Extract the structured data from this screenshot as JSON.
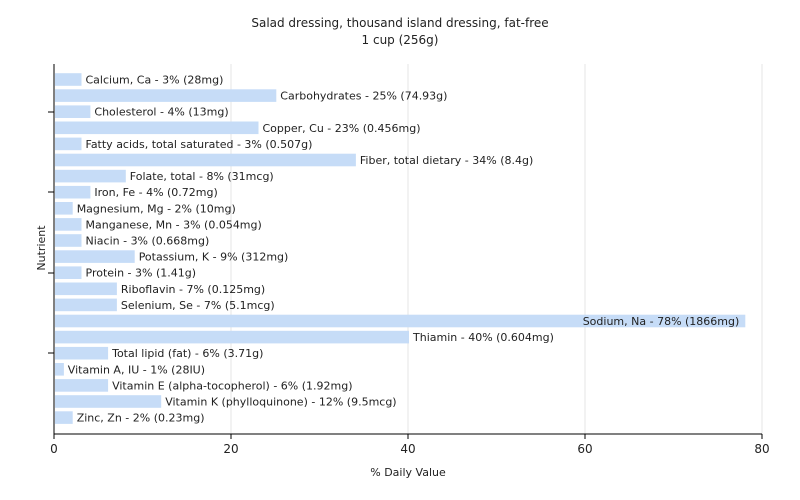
{
  "chart_data": {
    "type": "bar",
    "orientation": "horizontal",
    "title": "Salad dressing, thousand island dressing, fat-free",
    "subtitle": "1 cup (256g)",
    "xlabel": "% Daily Value",
    "ylabel": "Nutrient",
    "xlim": [
      0,
      80
    ],
    "xticks": [
      0,
      20,
      40,
      60,
      80
    ],
    "grid": true,
    "bar_color": "#c6dcf7",
    "categories": [
      "Calcium, Ca",
      "Carbohydrates",
      "Cholesterol",
      "Copper, Cu",
      "Fatty acids, total saturated",
      "Fiber, total dietary",
      "Folate, total",
      "Iron, Fe",
      "Magnesium, Mg",
      "Manganese, Mn",
      "Niacin",
      "Potassium, K",
      "Protein",
      "Riboflavin",
      "Selenium, Se",
      "Sodium, Na",
      "Thiamin",
      "Total lipid (fat)",
      "Vitamin A, IU",
      "Vitamin E (alpha-tocopherol)",
      "Vitamin K (phylloquinone)",
      "Zinc, Zn"
    ],
    "values": [
      3,
      25,
      4,
      23,
      3,
      34,
      8,
      4,
      2,
      3,
      3,
      9,
      3,
      7,
      7,
      78,
      40,
      6,
      1,
      6,
      12,
      2
    ],
    "labels": [
      "Calcium, Ca - 3% (28mg)",
      "Carbohydrates - 25% (74.93g)",
      "Cholesterol - 4% (13mg)",
      "Copper, Cu - 23% (0.456mg)",
      "Fatty acids, total saturated - 3% (0.507g)",
      "Fiber, total dietary - 34% (8.4g)",
      "Folate, total - 8% (31mcg)",
      "Iron, Fe - 4% (0.72mg)",
      "Magnesium, Mg - 2% (10mg)",
      "Manganese, Mn - 3% (0.054mg)",
      "Niacin - 3% (0.668mg)",
      "Potassium, K - 9% (312mg)",
      "Protein - 3% (1.41g)",
      "Riboflavin - 7% (0.125mg)",
      "Selenium, Se - 7% (5.1mcg)",
      "Sodium, Na - 78% (1866mg)",
      "Thiamin - 40% (0.604mg)",
      "Total lipid (fat) - 6% (3.71g)",
      "Vitamin A, IU - 1% (28IU)",
      "Vitamin E (alpha-tocopherol) - 6% (1.92mg)",
      "Vitamin K (phylloquinone) - 12% (9.5mcg)",
      "Zinc, Zn - 2% (0.23mg)"
    ]
  }
}
